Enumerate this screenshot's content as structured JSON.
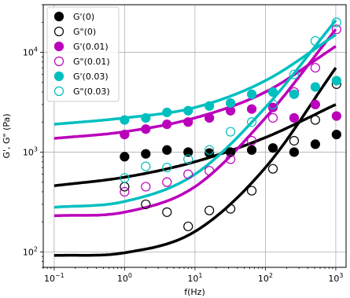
{
  "chart_data": {
    "type": "scatter",
    "xlabel": "f(Hz)",
    "ylabel": "G', G\" (Pa)",
    "xscale": "log",
    "yscale": "log",
    "xlim": [
      0.07,
      1400
    ],
    "ylim": [
      70,
      30000
    ],
    "grid": true,
    "legend_position": "top-left",
    "x_ticks": [
      {
        "value": 0.1,
        "base": "10",
        "exp": "−1"
      },
      {
        "value": 1,
        "base": "10",
        "exp": "0"
      },
      {
        "value": 10,
        "base": "10",
        "exp": "1"
      },
      {
        "value": 100,
        "base": "10",
        "exp": "2"
      },
      {
        "value": 1000,
        "base": "10",
        "exp": "3"
      }
    ],
    "y_ticks": [
      {
        "value": 100,
        "base": "10",
        "exp": "2"
      },
      {
        "value": 1000,
        "base": "10",
        "exp": "3"
      },
      {
        "value": 10000,
        "base": "10",
        "exp": "4"
      }
    ],
    "series": [
      {
        "name": "G'(0)",
        "color": "#000000",
        "marker": "filled",
        "x": [
          1,
          2,
          4,
          8,
          16,
          32,
          64,
          128,
          256,
          512,
          1024
        ],
        "y": [
          900,
          960,
          1050,
          1000,
          980,
          1000,
          1050,
          1100,
          1000,
          1200,
          1500
        ]
      },
      {
        "name": "G\"(0)",
        "color": "#000000",
        "marker": "open",
        "x": [
          1,
          2,
          4,
          8,
          16,
          32,
          64,
          128,
          256,
          512,
          1024
        ],
        "y": [
          450,
          300,
          250,
          180,
          260,
          270,
          410,
          680,
          1300,
          2100,
          4800
        ]
      },
      {
        "name": "G'(0.01)",
        "color": "#bb00bb",
        "marker": "filled",
        "x": [
          1,
          2,
          4,
          8,
          16,
          32,
          64,
          128,
          256,
          512,
          1024
        ],
        "y": [
          1500,
          1700,
          1900,
          2000,
          2200,
          2600,
          2700,
          2800,
          2200,
          3000,
          2300
        ]
      },
      {
        "name": "G\"(0.01)",
        "color": "#bb00bb",
        "marker": "open",
        "x": [
          1,
          2,
          4,
          8,
          16,
          32,
          64,
          128,
          256,
          512,
          1024
        ],
        "y": [
          400,
          450,
          500,
          600,
          650,
          850,
          1300,
          2200,
          4000,
          7000,
          17000
        ]
      },
      {
        "name": "G'(0.03)",
        "color": "#00bfbf",
        "marker": "filled",
        "x": [
          1,
          2,
          4,
          8,
          16,
          32,
          64,
          128,
          256,
          512,
          1024
        ],
        "y": [
          2100,
          2200,
          2500,
          2600,
          2900,
          3100,
          3800,
          4000,
          3800,
          4500,
          5200
        ]
      },
      {
        "name": "G\"(0.03)",
        "color": "#00bfbf",
        "marker": "open",
        "x": [
          1,
          2,
          4,
          8,
          16,
          32,
          64,
          128,
          256,
          512,
          1024
        ],
        "y": [
          550,
          720,
          700,
          850,
          1050,
          1600,
          2000,
          3000,
          6000,
          13000,
          20000
        ]
      }
    ],
    "fit_curves": [
      {
        "name": "",
        "color": "#000000",
        "x": [
          0.1,
          1,
          10,
          100,
          1000
        ],
        "y": [
          460,
          560,
          800,
          1400,
          3000
        ]
      },
      {
        "name": "",
        "color": "#000000",
        "x": [
          0.1,
          1,
          10,
          100,
          1000
        ],
        "y": [
          92,
          98,
          160,
          700,
          7000
        ]
      },
      {
        "name": "",
        "color": "#bb00bb",
        "x": [
          0.1,
          1,
          10,
          100,
          1000
        ],
        "y": [
          1370,
          1600,
          2200,
          4000,
          11500
        ]
      },
      {
        "name": "",
        "color": "#bb00bb",
        "x": [
          0.1,
          1,
          10,
          100,
          1000
        ],
        "y": [
          230,
          250,
          450,
          2200,
          17000
        ]
      },
      {
        "name": "",
        "color": "#00bfbf",
        "x": [
          0.1,
          1,
          10,
          100,
          1000
        ],
        "y": [
          1900,
          2200,
          2800,
          5200,
          15000
        ]
      },
      {
        "name": "",
        "color": "#00bfbf",
        "x": [
          0.1,
          1,
          10,
          100,
          1000
        ],
        "y": [
          280,
          320,
          600,
          2800,
          21000
        ]
      }
    ]
  }
}
